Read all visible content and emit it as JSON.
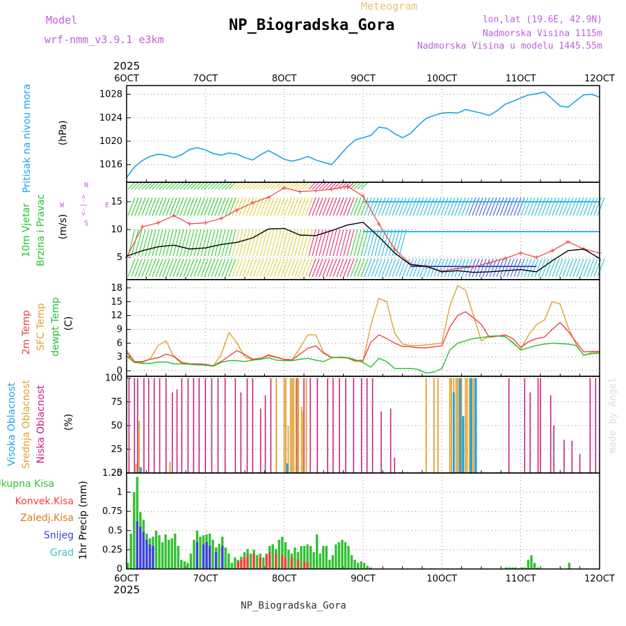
{
  "header": {
    "model_label": "Model",
    "model_name": "wrf-nmm_v3.9.1 e3km",
    "chart_kind": "Meteogram",
    "station": "NP_Biogradska_Gora",
    "coords": "lon,lat (19.6E, 42.9N)",
    "elevation": "Nadmorska Visina 1115m",
    "model_elevation": "Nadmorska Visina u modelu 1445.55m",
    "footer_station": "NP_Biogradska_Gora",
    "watermark": "made by Angel",
    "year_top": "2025",
    "year_bottom": "2025"
  },
  "colors": {
    "pressure": "#1ca3e6",
    "temp2m": "#f04040",
    "sfc": "#e0a030",
    "dewpt": "#22c22c",
    "high_cloud": "#1ca3e6",
    "mid_cloud": "#e0a030",
    "low_cloud": "#cc1f7a",
    "total_precip": "#33c033",
    "conv_precip": "#f04040",
    "freez_precip": "#e07820",
    "snow": "#4040e0",
    "hail": "#40c0c0",
    "wind_label": "#22c22c",
    "gust": "#f04040",
    "magenta_label": "#c060e0"
  },
  "chart_data": [
    {
      "type": "line",
      "panel": "pressure",
      "ylabel_side": "Pritisak na nivou mora",
      "ylabel_unit": "(hPa)",
      "x_ticks": [
        "6OCT",
        "7OCT",
        "8OCT",
        "9OCT",
        "10OCT",
        "11OCT",
        "12OCT"
      ],
      "ylim": [
        1013,
        1029.5
      ],
      "y_ticks": [
        "1016",
        "1020",
        "1024",
        "1028"
      ],
      "x": [
        0,
        0.1,
        0.2,
        0.3,
        0.4,
        0.5,
        0.6,
        0.7,
        0.8,
        0.9,
        1.0,
        1.1,
        1.2,
        1.3,
        1.4,
        1.5,
        1.6,
        1.7,
        1.8,
        1.9,
        2.0,
        2.1,
        2.2,
        2.3,
        2.4,
        2.5,
        2.6,
        2.7,
        2.8,
        2.9,
        3.0,
        3.1,
        3.2,
        3.3,
        3.4,
        3.5,
        3.6,
        3.7,
        3.8,
        3.9,
        4.0,
        4.1,
        4.2,
        4.3,
        4.4,
        4.5,
        4.6,
        4.7,
        4.8,
        4.9,
        5.0,
        5.1,
        5.2,
        5.3,
        5.4,
        5.5,
        5.6,
        5.7,
        5.8,
        5.9,
        6.0
      ],
      "series": [
        {
          "name": "pressure",
          "values": [
            1013.8,
            1015.6,
            1016.7,
            1017.4,
            1017.8,
            1017.6,
            1017.2,
            1017.7,
            1018.6,
            1018.9,
            1018.5,
            1017.9,
            1017.6,
            1018.0,
            1017.8,
            1017.2,
            1016.8,
            1017.7,
            1018.4,
            1017.7,
            1016.9,
            1016.6,
            1016.9,
            1017.4,
            1016.8,
            1016.4,
            1016.0,
            1017.5,
            1019.0,
            1020.2,
            1020.6,
            1021.0,
            1022.4,
            1022.2,
            1021.3,
            1020.6,
            1021.3,
            1022.7,
            1023.9,
            1024.4,
            1024.8,
            1024.9,
            1024.8,
            1025.4,
            1025.1,
            1024.8,
            1024.4,
            1025.2,
            1026.3,
            1026.8,
            1027.4,
            1027.9,
            1028.1,
            1028.4,
            1027.2,
            1026.0,
            1025.8,
            1026.9,
            1027.9,
            1028.0,
            1027.5
          ]
        }
      ]
    },
    {
      "type": "line",
      "panel": "wind",
      "ylabel_side1": "10m Vjetar",
      "ylabel_side2": "Brzina i Pravac",
      "ylabel_unit": "(m/s)",
      "compass_n": "N",
      "compass_s": "S",
      "compass_w": "W",
      "compass_e": "E",
      "compass_arrows": "<-|->",
      "ylim": [
        1,
        18.5
      ],
      "y_ticks": [
        "5",
        "10",
        "15"
      ],
      "x": [
        0,
        0.2,
        0.4,
        0.6,
        0.8,
        1.0,
        1.2,
        1.4,
        1.6,
        1.8,
        2.0,
        2.2,
        2.4,
        2.6,
        2.8,
        3.0,
        3.2,
        3.4,
        3.6,
        3.8,
        4.0,
        4.2,
        4.4,
        4.6,
        4.8,
        5.0,
        5.2,
        5.4,
        5.6,
        5.8,
        6.0
      ],
      "series": [
        {
          "name": "wind speed",
          "values": [
            5.2,
            6.2,
            6.9,
            7.2,
            6.5,
            6.7,
            7.3,
            7.7,
            8.5,
            10.1,
            10.2,
            9.0,
            8.9,
            9.8,
            10.8,
            11.3,
            8.7,
            5.8,
            3.7,
            3.4,
            2.4,
            2.6,
            2.3,
            2.4,
            2.6,
            2.8,
            2.4,
            4.4,
            6.2,
            6.5,
            4.8
          ]
        },
        {
          "name": "gust",
          "values": [
            5.0,
            10.5,
            11.2,
            12.5,
            11.0,
            11.2,
            12.0,
            13.5,
            14.8,
            15.8,
            17.5,
            16.8,
            17.0,
            17.2,
            17.8,
            16.0,
            11.0,
            6.5,
            3.8,
            3.4,
            2.5,
            3.0,
            3.3,
            4.0,
            4.8,
            5.8,
            5.0,
            6.2,
            7.8,
            6.5,
            5.8
          ]
        }
      ]
    },
    {
      "type": "line",
      "panel": "temperature",
      "ylabel_side1": "2m Temp",
      "ylabel_side2": "SFC Temp",
      "ylabel_side3": "dewpt Temp",
      "ylabel_unit": "(C)",
      "ylim": [
        -1.2,
        19.8
      ],
      "y_ticks": [
        "0",
        "3",
        "6",
        "9",
        "12",
        "15",
        "18"
      ],
      "x": [
        0,
        0.1,
        0.2,
        0.3,
        0.4,
        0.5,
        0.6,
        0.7,
        0.8,
        0.9,
        1.0,
        1.1,
        1.2,
        1.3,
        1.4,
        1.5,
        1.6,
        1.7,
        1.8,
        1.9,
        2.0,
        2.1,
        2.2,
        2.3,
        2.4,
        2.5,
        2.6,
        2.7,
        2.8,
        2.9,
        3.0,
        3.1,
        3.2,
        3.3,
        3.4,
        3.5,
        3.6,
        3.7,
        3.8,
        3.9,
        4.0,
        4.1,
        4.2,
        4.3,
        4.4,
        4.5,
        4.6,
        4.7,
        4.8,
        4.9,
        5.0,
        5.1,
        5.2,
        5.3,
        5.4,
        5.5,
        5.6,
        5.7,
        5.8,
        5.9,
        6.0
      ],
      "series": [
        {
          "name": "2m Temp",
          "values": [
            4.0,
            2.0,
            2.0,
            2.5,
            2.8,
            3.6,
            3.2,
            1.8,
            1.5,
            1.5,
            1.4,
            1.1,
            2.0,
            3.2,
            4.4,
            3.5,
            2.5,
            2.7,
            3.3,
            2.9,
            2.5,
            2.4,
            3.6,
            4.9,
            5.4,
            3.8,
            2.9,
            2.9,
            2.8,
            2.2,
            2.3,
            6.2,
            7.8,
            7.0,
            6.0,
            5.3,
            5.2,
            5.0,
            5.0,
            5.2,
            5.4,
            9.5,
            12.0,
            12.8,
            11.5,
            10.1,
            7.3,
            7.5,
            7.8,
            7.0,
            5.1,
            6.3,
            7.0,
            7.3,
            9.0,
            10.5,
            8.6,
            6.3,
            4.1,
            4.2,
            4.2
          ]
        },
        {
          "name": "SFC Temp",
          "values": [
            4.5,
            2.0,
            1.8,
            2.6,
            5.5,
            6.5,
            3.0,
            1.6,
            1.4,
            1.3,
            1.4,
            1.0,
            3.5,
            8.3,
            6.0,
            3.0,
            2.3,
            2.6,
            3.5,
            3.0,
            2.4,
            2.4,
            5.0,
            7.8,
            7.8,
            4.0,
            2.9,
            2.9,
            2.8,
            2.0,
            2.1,
            10.0,
            15.7,
            15.0,
            8.2,
            5.8,
            5.5,
            5.5,
            5.6,
            5.8,
            6.0,
            14.0,
            18.5,
            17.5,
            12.0,
            6.5,
            7.5,
            7.5,
            7.5,
            6.0,
            4.6,
            7.8,
            10.0,
            11.0,
            15.0,
            14.5,
            9.5,
            5.8,
            3.3,
            4.0,
            4.0
          ]
        },
        {
          "name": "dewpt Temp",
          "values": [
            3.2,
            1.8,
            1.6,
            1.6,
            1.9,
            1.9,
            1.5,
            1.5,
            1.4,
            1.3,
            1.2,
            1.0,
            1.8,
            2.2,
            2.2,
            2.0,
            2.3,
            2.5,
            2.8,
            2.3,
            2.2,
            2.2,
            2.5,
            2.7,
            2.3,
            2.0,
            2.8,
            3.0,
            2.9,
            2.4,
            1.8,
            0.8,
            2.7,
            2.0,
            0.5,
            0.5,
            0.5,
            0.3,
            -0.5,
            -0.3,
            0.5,
            4.5,
            6.0,
            6.5,
            7.0,
            7.2,
            7.5,
            7.6,
            7.4,
            6.2,
            4.5,
            5.0,
            5.5,
            5.8,
            6.0,
            5.9,
            5.8,
            5.5,
            3.4,
            3.7,
            3.8
          ]
        }
      ]
    },
    {
      "type": "bar",
      "panel": "clouds",
      "ylabel_side1": "Visoka Oblacnost",
      "ylabel_side2": "Srednja Oblacnost",
      "ylabel_side3": "Niska Oblacnost",
      "ylabel_unit": "(%)",
      "ylim": [
        0,
        102
      ],
      "y_ticks": [
        "0",
        "25",
        "50",
        "75",
        "100"
      ],
      "series": [
        {
          "name": "Niska Oblacnost",
          "x": [
            0.03,
            0.1,
            0.14,
            0.22,
            0.28,
            0.35,
            0.42,
            0.5,
            0.58,
            0.64,
            0.7,
            0.78,
            0.85,
            0.92,
            1.0,
            1.08,
            1.16,
            1.25,
            1.38,
            1.45,
            1.53,
            1.6,
            1.7,
            1.76,
            1.83,
            1.9,
            2.0,
            2.08,
            2.16,
            2.25,
            2.33,
            2.42,
            2.55,
            2.62,
            2.7,
            2.78,
            2.88,
            2.98,
            3.05,
            3.12,
            3.23,
            3.35,
            3.4,
            4.85,
            5.05,
            5.12,
            5.22,
            5.25,
            5.38,
            5.42,
            5.55,
            5.65,
            5.75,
            5.88,
            5.95
          ],
          "values": [
            100,
            100,
            100,
            100,
            100,
            100,
            100,
            100,
            85,
            88,
            100,
            100,
            100,
            100,
            100,
            100,
            100,
            100,
            100,
            85,
            100,
            100,
            68,
            82,
            100,
            100,
            100,
            100,
            100,
            100,
            100,
            100,
            100,
            100,
            100,
            100,
            100,
            100,
            100,
            100,
            65,
            68,
            16,
            100,
            100,
            85,
            100,
            100,
            82,
            50,
            35,
            34,
            20,
            100,
            100
          ]
        },
        {
          "name": "Srednja Oblacnost",
          "x": [
            0.12,
            0.16,
            0.55,
            1.9,
            2.0,
            2.02,
            2.05,
            2.08,
            2.1,
            2.12,
            2.15,
            2.18,
            2.22,
            2.24,
            2.28,
            3.8,
            3.9,
            3.95,
            4.1,
            4.12,
            4.15,
            4.18,
            4.2,
            4.22,
            4.25,
            4.3,
            4.32,
            4.35,
            4.38,
            4.4,
            4.42
          ],
          "values": [
            10,
            55,
            12,
            100,
            100,
            100,
            50,
            100,
            100,
            100,
            100,
            100,
            70,
            65,
            100,
            100,
            100,
            100,
            100,
            100,
            100,
            100,
            100,
            100,
            100,
            100,
            100,
            100,
            100,
            100,
            100
          ]
        },
        {
          "name": "Visoka Oblacnost",
          "x": [
            0.18,
            2.04,
            4.15,
            4.23,
            4.27,
            4.37,
            4.43
          ],
          "values": [
            6,
            10,
            85,
            100,
            60,
            100,
            100
          ]
        }
      ]
    },
    {
      "type": "bar",
      "panel": "precipitation",
      "ylabel_unit": "1hr Precip (mm)",
      "legend": [
        "Ukupna Kisa",
        "Konvek.Kisa",
        "Zaledj.Kisa",
        "Snijeg",
        "Grad"
      ],
      "ylim": [
        0,
        1.25
      ],
      "y_ticks": [
        "0",
        "0.25",
        "0.5",
        "0.75",
        "1",
        "1.25"
      ],
      "series": [
        {
          "name": "Ukupna Kisa",
          "x": [
            0.0,
            0.04,
            0.08,
            0.12,
            0.16,
            0.2,
            0.24,
            0.28,
            0.32,
            0.36,
            0.4,
            0.44,
            0.48,
            0.52,
            0.56,
            0.6,
            0.64,
            0.68,
            0.72,
            0.76,
            0.8,
            0.84,
            0.88,
            0.92,
            0.96,
            1.0,
            1.04,
            1.08,
            1.12,
            1.16,
            1.2,
            1.24,
            1.28,
            1.32,
            1.36,
            1.4,
            1.44,
            1.48,
            1.52,
            1.56,
            1.6,
            1.64,
            1.68,
            1.72,
            1.76,
            1.8,
            1.84,
            1.88,
            1.92,
            1.96,
            2.0,
            2.04,
            2.08,
            2.12,
            2.16,
            2.2,
            2.24,
            2.28,
            2.32,
            2.36,
            2.4,
            2.44,
            2.48,
            2.52,
            2.56,
            2.6,
            2.64,
            2.68,
            2.72,
            2.76,
            2.8,
            2.84,
            2.88,
            2.92,
            2.96,
            3.0,
            3.04,
            3.08,
            4.8,
            4.84,
            4.88,
            4.92,
            4.96,
            5.0,
            5.04,
            5.08,
            5.12,
            5.16,
            5.2,
            5.6
          ],
          "values": [
            0.08,
            0.46,
            1.0,
            1.2,
            0.74,
            0.64,
            0.46,
            0.4,
            0.42,
            0.5,
            0.44,
            0.35,
            0.45,
            0.38,
            0.4,
            0.46,
            0.3,
            0.12,
            0.1,
            0.08,
            0.2,
            0.38,
            0.5,
            0.42,
            0.44,
            0.45,
            0.46,
            0.38,
            0.28,
            0.33,
            0.42,
            0.28,
            0.2,
            0.08,
            0.15,
            0.12,
            0.16,
            0.22,
            0.26,
            0.2,
            0.25,
            0.18,
            0.2,
            0.15,
            0.2,
            0.3,
            0.32,
            0.26,
            0.38,
            0.42,
            0.35,
            0.25,
            0.2,
            0.28,
            0.22,
            0.3,
            0.3,
            0.32,
            0.3,
            0.22,
            0.45,
            0.2,
            0.3,
            0.3,
            0.12,
            0.18,
            0.32,
            0.35,
            0.38,
            0.35,
            0.3,
            0.18,
            0.12,
            0.08,
            0.1,
            0.08,
            0.04,
            0.02,
            0.02,
            0.02,
            0.02,
            0.02,
            0.01,
            0.02,
            0.02,
            0.12,
            0.18,
            0.08,
            0.02,
            0.08
          ]
        },
        {
          "name": "Snijeg",
          "x": [
            0.12,
            0.16,
            0.2,
            0.24,
            0.28,
            0.32,
            0.88,
            0.96,
            1.0,
            1.04,
            1.12,
            1.2
          ],
          "values": [
            0.62,
            0.55,
            0.48,
            0.38,
            0.32,
            0.3,
            0.35,
            0.32,
            0.35,
            0.3,
            0.22,
            0.3
          ]
        },
        {
          "name": "Konvek.Kisa",
          "x": [
            1.4,
            1.44,
            1.48,
            1.52,
            1.6,
            1.68,
            1.76,
            1.8,
            1.88,
            1.96,
            2.0,
            2.08,
            2.16,
            2.24,
            2.28
          ],
          "values": [
            0.1,
            0.12,
            0.15,
            0.18,
            0.2,
            0.15,
            0.18,
            0.22,
            0.2,
            0.18,
            0.15,
            0.15,
            0.12,
            0.1,
            0.08
          ]
        }
      ]
    }
  ]
}
